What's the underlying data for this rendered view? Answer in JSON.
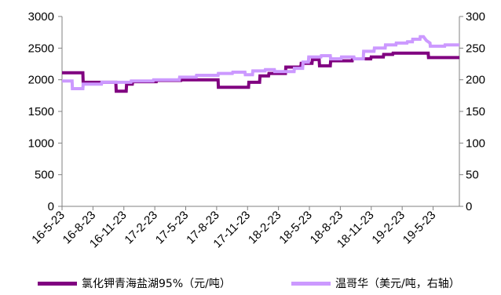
{
  "chart_data": {
    "type": "line",
    "step": true,
    "colors": {
      "series_0": "#800080",
      "series_1": "#CC99FF"
    },
    "x_tick_labels": [
      "16-5-23",
      "16-8-23",
      "16-11-23",
      "17-2-23",
      "17-5-23",
      "17-8-23",
      "17-11-23",
      "18-2-23",
      "18-5-23",
      "18-8-23",
      "18-11-23",
      "19-2-23",
      "19-5-23"
    ],
    "y_left": {
      "lim": [
        0,
        3000
      ],
      "ticks": [
        0,
        500,
        1000,
        1500,
        2000,
        2500,
        3000
      ]
    },
    "y_right": {
      "lim": [
        0,
        300
      ],
      "ticks": [
        0,
        50,
        100,
        150,
        200,
        250,
        300
      ]
    },
    "grid": false,
    "legend_position": "bottom",
    "series": [
      {
        "name": "氯化钾青海盐湖95%（元/吨）",
        "axis": "left",
        "points": [
          [
            "2016-05-23",
            2110
          ],
          [
            "2016-07-20",
            2110
          ],
          [
            "2016-07-21",
            1960
          ],
          [
            "2016-09-15",
            1960
          ],
          [
            "2016-09-16",
            1960
          ],
          [
            "2016-10-20",
            1960
          ],
          [
            "2016-10-21",
            1820
          ],
          [
            "2016-11-18",
            1820
          ],
          [
            "2016-11-19",
            1930
          ],
          [
            "2016-12-05",
            1930
          ],
          [
            "2016-12-06",
            1970
          ],
          [
            "2017-02-10",
            1970
          ],
          [
            "2017-02-11",
            1990
          ],
          [
            "2017-04-20",
            1990
          ],
          [
            "2017-04-21",
            2000
          ],
          [
            "2017-08-01",
            2000
          ],
          [
            "2017-08-02",
            1880
          ],
          [
            "2017-10-25",
            1880
          ],
          [
            "2017-10-26",
            1960
          ],
          [
            "2017-11-25",
            1960
          ],
          [
            "2017-11-26",
            2060
          ],
          [
            "2017-12-20",
            2060
          ],
          [
            "2017-12-21",
            2100
          ],
          [
            "2018-02-05",
            2100
          ],
          [
            "2018-02-06",
            2200
          ],
          [
            "2018-03-20",
            2200
          ],
          [
            "2018-03-21",
            2260
          ],
          [
            "2018-04-20",
            2260
          ],
          [
            "2018-04-21",
            2320
          ],
          [
            "2018-05-10",
            2320
          ],
          [
            "2018-05-11",
            2220
          ],
          [
            "2018-06-10",
            2220
          ],
          [
            "2018-06-11",
            2300
          ],
          [
            "2018-08-10",
            2300
          ],
          [
            "2018-08-11",
            2330
          ],
          [
            "2018-10-01",
            2330
          ],
          [
            "2018-10-02",
            2360
          ],
          [
            "2018-11-05",
            2360
          ],
          [
            "2018-11-06",
            2400
          ],
          [
            "2018-12-01",
            2400
          ],
          [
            "2018-12-02",
            2420
          ],
          [
            "2019-03-10",
            2420
          ],
          [
            "2019-03-11",
            2350
          ],
          [
            "2019-06-05",
            2350
          ]
        ]
      },
      {
        "name": "温哥华（美元/吨，右轴）",
        "axis": "right",
        "points": [
          [
            "2016-05-23",
            198
          ],
          [
            "2016-06-20",
            198
          ],
          [
            "2016-06-21",
            186
          ],
          [
            "2016-07-20",
            186
          ],
          [
            "2016-07-21",
            193
          ],
          [
            "2016-09-10",
            193
          ],
          [
            "2016-09-11",
            196
          ],
          [
            "2016-12-01",
            196
          ],
          [
            "2016-12-02",
            198
          ],
          [
            "2017-02-01",
            198
          ],
          [
            "2017-02-02",
            200
          ],
          [
            "2017-04-15",
            200
          ],
          [
            "2017-04-16",
            204
          ],
          [
            "2017-06-01",
            204
          ],
          [
            "2017-06-02",
            207
          ],
          [
            "2017-08-01",
            207
          ],
          [
            "2017-08-02",
            210
          ],
          [
            "2017-09-10",
            210
          ],
          [
            "2017-09-11",
            212
          ],
          [
            "2017-10-15",
            212
          ],
          [
            "2017-10-16",
            208
          ],
          [
            "2017-11-05",
            208
          ],
          [
            "2017-11-06",
            214
          ],
          [
            "2017-12-10",
            214
          ],
          [
            "2017-12-11",
            216
          ],
          [
            "2018-01-05",
            216
          ],
          [
            "2018-01-06",
            213
          ],
          [
            "2018-03-01",
            213
          ],
          [
            "2018-03-02",
            218
          ],
          [
            "2018-03-25",
            218
          ],
          [
            "2018-03-26",
            228
          ],
          [
            "2018-04-10",
            228
          ],
          [
            "2018-04-11",
            236
          ],
          [
            "2018-05-15",
            236
          ],
          [
            "2018-05-16",
            238
          ],
          [
            "2018-06-10",
            238
          ],
          [
            "2018-06-11",
            233
          ],
          [
            "2018-07-10",
            233
          ],
          [
            "2018-07-11",
            236
          ],
          [
            "2018-08-15",
            236
          ],
          [
            "2018-08-16",
            233
          ],
          [
            "2018-09-10",
            233
          ],
          [
            "2018-09-11",
            245
          ],
          [
            "2018-10-10",
            245
          ],
          [
            "2018-10-11",
            250
          ],
          [
            "2018-11-10",
            250
          ],
          [
            "2018-11-11",
            255
          ],
          [
            "2018-12-10",
            255
          ],
          [
            "2018-12-11",
            258
          ],
          [
            "2019-01-10",
            258
          ],
          [
            "2019-01-11",
            260
          ],
          [
            "2019-01-25",
            260
          ],
          [
            "2019-01-26",
            264
          ],
          [
            "2019-02-15",
            264
          ],
          [
            "2019-02-16",
            268
          ],
          [
            "2019-02-25",
            268
          ],
          [
            "2019-03-05",
            262
          ],
          [
            "2019-03-15",
            258
          ],
          [
            "2019-03-16",
            253
          ],
          [
            "2019-04-25",
            253
          ],
          [
            "2019-04-26",
            255
          ],
          [
            "2019-06-05",
            255
          ]
        ]
      }
    ]
  }
}
